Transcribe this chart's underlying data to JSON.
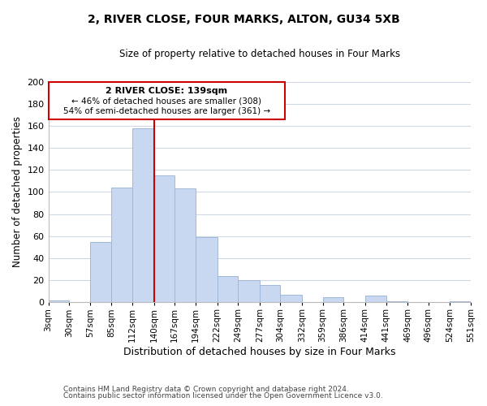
{
  "title": "2, RIVER CLOSE, FOUR MARKS, ALTON, GU34 5XB",
  "subtitle": "Size of property relative to detached houses in Four Marks",
  "xlabel": "Distribution of detached houses by size in Four Marks",
  "ylabel": "Number of detached properties",
  "bar_color": "#c8d8f0",
  "bar_edge_color": "#a0b8d8",
  "property_line_x": 140,
  "property_line_color": "#cc0000",
  "annotation_title": "2 RIVER CLOSE: 139sqm",
  "annotation_line1": "← 46% of detached houses are smaller (308)",
  "annotation_line2": "54% of semi-detached houses are larger (361) →",
  "annotation_box_color": "#cc0000",
  "bins": [
    3,
    30,
    57,
    85,
    112,
    140,
    167,
    194,
    222,
    249,
    277,
    304,
    332,
    359,
    386,
    414,
    441,
    469,
    496,
    524,
    551
  ],
  "counts": [
    2,
    0,
    55,
    104,
    158,
    115,
    103,
    59,
    24,
    20,
    16,
    7,
    0,
    5,
    0,
    6,
    1,
    0,
    0,
    1
  ],
  "tick_labels": [
    "3sqm",
    "30sqm",
    "57sqm",
    "85sqm",
    "112sqm",
    "140sqm",
    "167sqm",
    "194sqm",
    "222sqm",
    "249sqm",
    "277sqm",
    "304sqm",
    "332sqm",
    "359sqm",
    "386sqm",
    "414sqm",
    "441sqm",
    "469sqm",
    "496sqm",
    "524sqm",
    "551sqm"
  ],
  "ylim": [
    0,
    200
  ],
  "yticks": [
    0,
    20,
    40,
    60,
    80,
    100,
    120,
    140,
    160,
    180,
    200
  ],
  "footer1": "Contains HM Land Registry data © Crown copyright and database right 2024.",
  "footer2": "Contains public sector information licensed under the Open Government Licence v3.0.",
  "background_color": "#ffffff",
  "grid_color": "#d0d8e8"
}
